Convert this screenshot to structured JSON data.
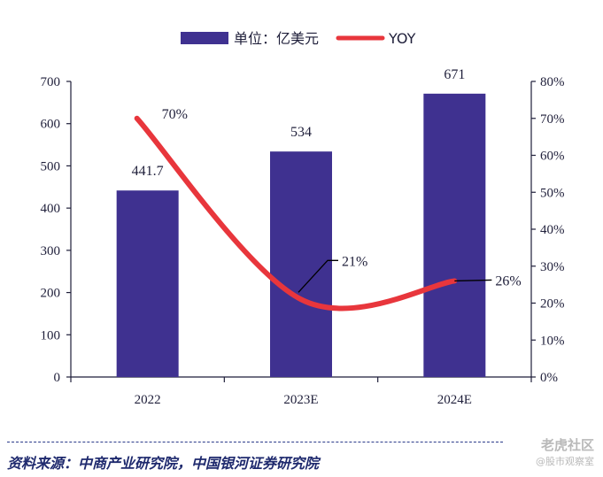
{
  "chart_data": {
    "type": "bar",
    "categories": [
      "2022",
      "2023E",
      "2024E"
    ],
    "series": [
      {
        "name": "单位：亿美元",
        "type": "bar",
        "axis": "left",
        "values": [
          441.7,
          534,
          671
        ],
        "color": "#3f3190"
      },
      {
        "name": "YOY",
        "type": "line",
        "axis": "right",
        "values": [
          70,
          21,
          26
        ],
        "color": "#e8363c"
      }
    ],
    "bar_labels": [
      "441.7",
      "534",
      "671"
    ],
    "line_labels": [
      "70%",
      "21%",
      "26%"
    ],
    "left_axis": {
      "min": 0,
      "max": 700,
      "ticks": [
        "0",
        "100",
        "200",
        "300",
        "400",
        "500",
        "600",
        "700"
      ]
    },
    "right_axis": {
      "min": 0,
      "max": 80,
      "ticks": [
        "0%",
        "10%",
        "20%",
        "30%",
        "40%",
        "50%",
        "60%",
        "70%",
        "80%"
      ]
    },
    "legend": {
      "position": "top"
    },
    "grid": false
  },
  "source_text": "资料来源：中商产业研究院，中国银河证券研究院",
  "watermark": {
    "main": "老虎社区",
    "sub": "@股市观察室"
  }
}
